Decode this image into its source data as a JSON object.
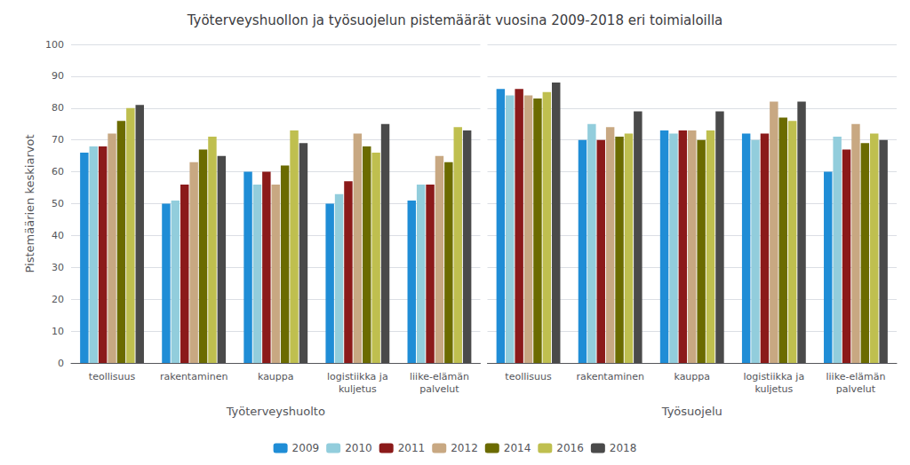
{
  "chart_data": [
    {
      "type": "bar",
      "title": "Työterveyshuollon ja työsuojelun pistemäärät vuosina 2009-2018 eri toimialoilla",
      "xlabel": "Työterveyshuolto",
      "ylabel": "Pistemäärien keskiarvot",
      "categories": [
        "teollisuus",
        "rakentaminen",
        "kauppa",
        "logistiikka ja\nkuljetus",
        "liike-elämän\npalvelut"
      ],
      "series": [
        {
          "name": "2009",
          "color": "#1F8DD6",
          "values": [
            66,
            50,
            60,
            50,
            51
          ]
        },
        {
          "name": "2010",
          "color": "#92CDDC",
          "values": [
            68,
            51,
            56,
            53,
            56
          ]
        },
        {
          "name": "2011",
          "color": "#8B1A1A",
          "values": [
            68,
            56,
            60,
            57,
            56
          ]
        },
        {
          "name": "2012",
          "color": "#C8A882",
          "values": [
            72,
            63,
            56,
            72,
            65
          ]
        },
        {
          "name": "2014",
          "color": "#6B6B00",
          "values": [
            76,
            67,
            62,
            68,
            63
          ]
        },
        {
          "name": "2016",
          "color": "#BFBF4F",
          "values": [
            80,
            71,
            73,
            66,
            74
          ]
        },
        {
          "name": "2018",
          "color": "#4A4A4A",
          "values": [
            81,
            65,
            69,
            75,
            73
          ]
        }
      ],
      "ylim": [
        0,
        100
      ],
      "yticks": [
        0,
        10,
        20,
        30,
        40,
        50,
        60,
        70,
        80,
        90,
        100
      ],
      "grid": true,
      "legend": "bottom"
    },
    {
      "type": "bar",
      "xlabel": "Työsuojelu",
      "categories": [
        "teollisuus",
        "rakentaminen",
        "kauppa",
        "logistiikka ja\nkuljetus",
        "liike-elämän\npalvelut"
      ],
      "series": [
        {
          "name": "2009",
          "color": "#1F8DD6",
          "values": [
            86,
            70,
            73,
            72,
            60
          ]
        },
        {
          "name": "2010",
          "color": "#92CDDC",
          "values": [
            84,
            75,
            72,
            70,
            71
          ]
        },
        {
          "name": "2011",
          "color": "#8B1A1A",
          "values": [
            86,
            70,
            73,
            72,
            67
          ]
        },
        {
          "name": "2012",
          "color": "#C8A882",
          "values": [
            84,
            74,
            73,
            82,
            75
          ]
        },
        {
          "name": "2014",
          "color": "#6B6B00",
          "values": [
            83,
            71,
            70,
            77,
            69
          ]
        },
        {
          "name": "2016",
          "color": "#BFBF4F",
          "values": [
            85,
            72,
            73,
            76,
            72
          ]
        },
        {
          "name": "2018",
          "color": "#4A4A4A",
          "values": [
            88,
            79,
            79,
            82,
            70
          ]
        }
      ],
      "ylim": [
        0,
        100
      ],
      "yticks": [
        0,
        10,
        20,
        30,
        40,
        50,
        60,
        70,
        80,
        90,
        100
      ],
      "grid": true,
      "tick_labels": "x"
    }
  ]
}
